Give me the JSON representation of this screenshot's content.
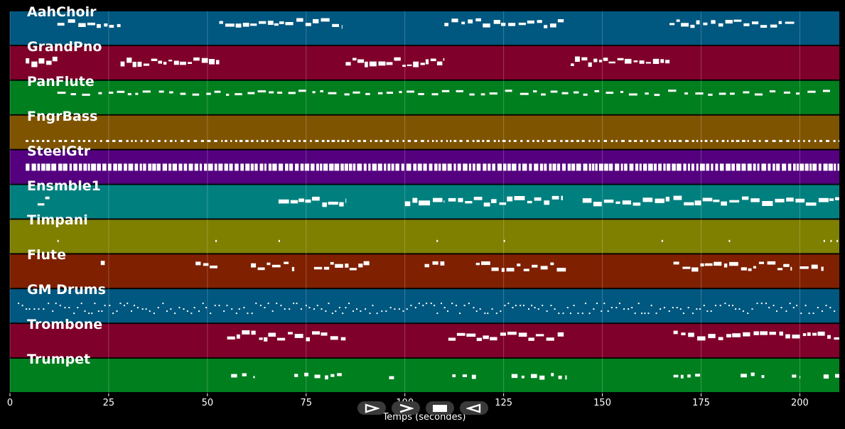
{
  "chart_data": {
    "type": "piano-roll",
    "xlabel": "Temps (secondes)",
    "xlim": [
      0,
      210
    ],
    "x_ticks": [
      0,
      25,
      50,
      75,
      100,
      125,
      150,
      175,
      200
    ],
    "x_tick_labels": [
      "0",
      "25",
      "50",
      "75",
      "100",
      "125",
      "150",
      "175",
      "200"
    ],
    "grid": true,
    "tracks": [
      {
        "name": "AahChoir",
        "color": "#00577f",
        "pattern": "phrases",
        "segments": [
          [
            12,
            28
          ],
          [
            53,
            84
          ],
          [
            110,
            141
          ],
          [
            167,
            199
          ]
        ]
      },
      {
        "name": "GrandPno",
        "color": "#7f002a",
        "pattern": "chords",
        "segments": [
          [
            4,
            12
          ],
          [
            28,
            53
          ],
          [
            85,
            110
          ],
          [
            142,
            167
          ]
        ]
      },
      {
        "name": "PanFlute",
        "color": "#007f1f",
        "pattern": "melody",
        "segments": [
          [
            12,
            208
          ]
        ]
      },
      {
        "name": "FngrBass",
        "color": "#7f5400",
        "pattern": "bass",
        "segments": [
          [
            4,
            210
          ]
        ]
      },
      {
        "name": "SteelGtr",
        "color": "#54007f",
        "pattern": "dense",
        "segments": [
          [
            4,
            210
          ]
        ]
      },
      {
        "name": "Ensmble1",
        "color": "#007f7f",
        "pattern": "pads",
        "segments": [
          [
            7,
            10
          ],
          [
            68,
            85
          ],
          [
            100,
            110
          ],
          [
            111,
            140
          ],
          [
            145,
            167
          ],
          [
            168,
            210
          ]
        ]
      },
      {
        "name": "Timpani",
        "color": "#7f7f00",
        "pattern": "hits",
        "segments": [
          [
            12,
            13
          ],
          [
            52,
            53
          ],
          [
            68,
            69
          ],
          [
            108,
            109
          ],
          [
            125,
            126
          ],
          [
            165,
            166
          ],
          [
            182,
            183
          ],
          [
            206,
            210
          ]
        ]
      },
      {
        "name": "Flute",
        "color": "#7f2000",
        "pattern": "phrases",
        "segments": [
          [
            23,
            24
          ],
          [
            47,
            53
          ],
          [
            61,
            72
          ],
          [
            77,
            91
          ],
          [
            105,
            110
          ],
          [
            118,
            141
          ],
          [
            168,
            198
          ],
          [
            200,
            206
          ]
        ]
      },
      {
        "name": "GM Drums",
        "color": "#00577f",
        "pattern": "drums",
        "segments": [
          [
            2,
            209
          ]
        ]
      },
      {
        "name": "Trombone",
        "color": "#7f002a",
        "pattern": "phrases",
        "segments": [
          [
            55,
            85
          ],
          [
            111,
            141
          ],
          [
            168,
            210
          ]
        ]
      },
      {
        "name": "Trumpet",
        "color": "#007f1f",
        "pattern": "sparse",
        "segments": [
          [
            56,
            62
          ],
          [
            72,
            85
          ],
          [
            96,
            98
          ],
          [
            112,
            118
          ],
          [
            127,
            141
          ],
          [
            168,
            175
          ],
          [
            185,
            191
          ],
          [
            198,
            200
          ],
          [
            206,
            210
          ]
        ]
      }
    ]
  },
  "controls": [
    {
      "name": "play-button",
      "label": "play"
    },
    {
      "name": "forward-button",
      "label": "forward"
    },
    {
      "name": "stop-button",
      "label": "stop"
    },
    {
      "name": "rewind-button",
      "label": "rewind"
    }
  ]
}
